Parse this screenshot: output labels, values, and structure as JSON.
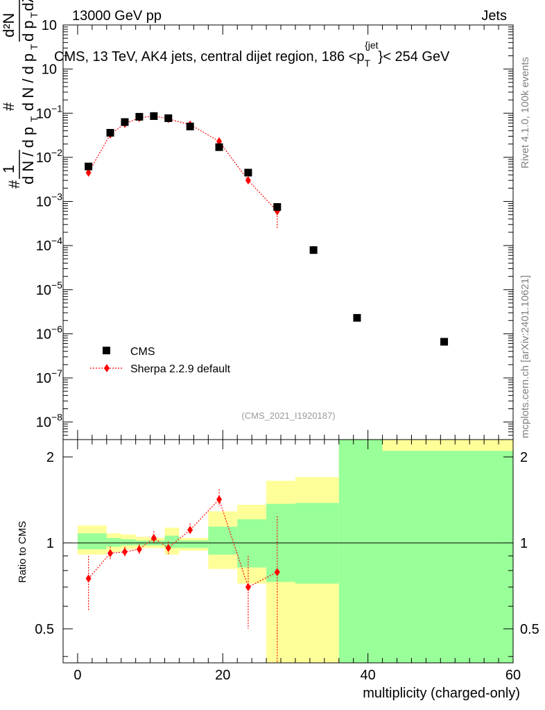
{
  "header": {
    "energy_label": "13000 GeV pp",
    "category_label": "Jets"
  },
  "side_labels": {
    "rivet_version": "Rivet 4.1.0,  100k events",
    "source": "mcplots.cern.ch [arXiv:2401.10621]"
  },
  "chart_data": [
    {
      "type": "scatter",
      "title": "CMS, 13 TeV, AK4 jets, central dijet region, 186 <p",
      "title_sub": "T",
      "title_sup": "{jet",
      "title_brace": "}",
      "title_tail": "< 254 GeV",
      "analysis_id": "(CMS_2021_I1920187)",
      "yscale": "log",
      "ylim": [
        4e-09,
        10
      ],
      "xlim": [
        -2,
        60
      ],
      "ylabel": {
        "one": "1",
        "hash": "#",
        "dN": "d N / d p",
        "sub_T": "T",
        "d2N": "d²N",
        "dpT_dlambda": "d p",
        "dlambda": "dλ"
      },
      "ytick_labels": [
        "10",
        "10",
        "10",
        "10",
        "10",
        "10",
        "10",
        "10",
        "10",
        "10"
      ],
      "ytick_values": [
        10,
        1,
        0.1,
        0.01,
        0.001,
        0.0001,
        1e-05,
        1e-06,
        1e-07,
        1e-08
      ],
      "ytick_exponents": [
        "",
        "",
        "−1",
        "−2",
        "−3",
        "−4",
        "−5",
        "−6",
        "−7",
        "−8"
      ],
      "legend": {
        "position": "bottom-left",
        "entries": [
          "CMS",
          "Sherpa 2.2.9 default"
        ]
      },
      "series": [
        {
          "name": "CMS",
          "marker": "square",
          "color": "#000000",
          "x": [
            1.5,
            4.5,
            6.5,
            8.5,
            10.5,
            12.5,
            15.5,
            19.5,
            23.5,
            27.5,
            32.5,
            38.5,
            50.5
          ],
          "y": [
            0.0062,
            0.036,
            0.063,
            0.083,
            0.086,
            0.077,
            0.05,
            0.017,
            0.0045,
            0.00075,
            7.9e-05,
            2.3e-06,
            6.6e-07
          ]
        },
        {
          "name": "Sherpa 2.2.9 default",
          "marker": "diamond",
          "color": "#ff0000",
          "x": [
            1.5,
            4.5,
            6.5,
            8.5,
            10.5,
            12.5,
            15.5,
            19.5,
            23.5,
            27.5
          ],
          "y": [
            0.0045,
            0.033,
            0.058,
            0.078,
            0.087,
            0.074,
            0.055,
            0.023,
            0.003,
            0.0006
          ],
          "err_low": [
            0.0003,
            0.0015,
            0.002,
            0.002,
            0.002,
            0.002,
            0.002,
            0.0015,
            0.0006,
            0.00035
          ],
          "err_high": [
            0.0003,
            0.0015,
            0.002,
            0.002,
            0.002,
            0.002,
            0.002,
            0.0015,
            0.0006,
            0.00025
          ]
        }
      ]
    },
    {
      "type": "scatter",
      "ylabel": "Ratio to CMS",
      "xlabel": "multiplicity (charged-only)",
      "xlim": [
        -2,
        60
      ],
      "ylim": [
        0.38,
        2.3
      ],
      "xtick_labels": [
        "0",
        "20",
        "40",
        "60"
      ],
      "xtick_values": [
        0,
        20,
        40,
        60
      ],
      "ytick_labels": [
        "0.5",
        "1",
        "2"
      ],
      "ytick_values": [
        0.5,
        1,
        2
      ],
      "reference_line": 1,
      "bands": [
        {
          "x0": 0,
          "x1": 4,
          "green": [
            0.95,
            1.08
          ],
          "yellow": [
            0.91,
            1.15
          ]
        },
        {
          "x0": 4,
          "x1": 6,
          "green": [
            0.97,
            1.04
          ],
          "yellow": [
            0.93,
            1.08
          ]
        },
        {
          "x0": 6,
          "x1": 8,
          "green": [
            0.98,
            1.03
          ],
          "yellow": [
            0.95,
            1.07
          ]
        },
        {
          "x0": 8,
          "x1": 10,
          "green": [
            0.98,
            1.02
          ],
          "yellow": [
            0.96,
            1.05
          ]
        },
        {
          "x0": 10,
          "x1": 12,
          "green": [
            0.98,
            1.02
          ],
          "yellow": [
            0.96,
            1.04
          ]
        },
        {
          "x0": 12,
          "x1": 14,
          "green": [
            0.96,
            1.06
          ],
          "yellow": [
            0.91,
            1.13
          ]
        },
        {
          "x0": 14,
          "x1": 18,
          "green": [
            0.96,
            1.02
          ],
          "yellow": [
            0.94,
            1.04
          ]
        },
        {
          "x0": 18,
          "x1": 22,
          "green": [
            0.91,
            1.14
          ],
          "yellow": [
            0.81,
            1.29
          ]
        },
        {
          "x0": 22,
          "x1": 26,
          "green": [
            0.82,
            1.21
          ],
          "yellow": [
            0.72,
            1.36
          ]
        },
        {
          "x0": 26,
          "x1": 30,
          "green": [
            0.73,
            1.37
          ],
          "yellow": [
            0.38,
            1.65
          ]
        },
        {
          "x0": 30,
          "x1": 36,
          "green": [
            0.72,
            1.38
          ],
          "yellow": [
            0.38,
            1.7
          ]
        },
        {
          "x0": 36,
          "x1": 42,
          "green": [
            0.38,
            2.3
          ],
          "yellow": [
            0.38,
            2.3
          ]
        },
        {
          "x0": 42,
          "x1": 60,
          "green": [
            0.38,
            2.1
          ],
          "yellow": [
            0.38,
            2.3
          ]
        }
      ],
      "series": [
        {
          "name": "Sherpa 2.2.9 default / CMS",
          "marker": "diamond",
          "color": "#ff0000",
          "x": [
            1.5,
            4.5,
            6.5,
            8.5,
            10.5,
            12.5,
            15.5,
            19.5,
            23.5,
            27.5
          ],
          "y": [
            0.75,
            0.92,
            0.93,
            0.95,
            1.04,
            0.96,
            1.11,
            1.42,
            0.7,
            0.79
          ],
          "err_low": [
            0.17,
            0.05,
            0.04,
            0.04,
            0.04,
            0.05,
            0.04,
            0.08,
            0.2,
            0.45
          ],
          "err_high": [
            0.15,
            0.05,
            0.04,
            0.04,
            0.06,
            0.05,
            0.06,
            0.12,
            0.2,
            0.45
          ]
        }
      ]
    }
  ]
}
